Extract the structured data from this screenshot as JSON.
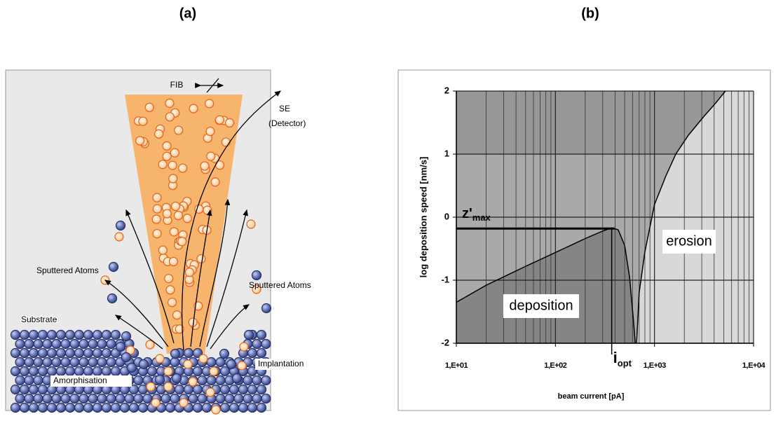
{
  "figure": {
    "label_a": "(a)",
    "label_b": "(b)"
  },
  "panel_a": {
    "fib": "FIB",
    "se": [
      "SE",
      "(Detector)"
    ],
    "sputtered_left": "Sputtered Atoms",
    "sputtered_right": "Sputtered Atoms",
    "substrate": "Substrate",
    "amorphisation": "Amorphisation",
    "implantation": "Implantation"
  },
  "chart_data": {
    "type": "line",
    "ylabel": "log deposition speed [nm/s]",
    "xlabel": "beam current [pA]",
    "log_x": true,
    "grid": true,
    "xlim": [
      10,
      10000
    ],
    "ylim": [
      -2,
      2
    ],
    "xticks": [
      {
        "value": 10,
        "label": "1,E+01"
      },
      {
        "value": 100,
        "label": "1,E+02"
      },
      {
        "value": 1000,
        "label": "1,E+03"
      },
      {
        "value": 10000,
        "label": "1,E+04"
      }
    ],
    "yticks": [
      -2,
      -1,
      0,
      1,
      2
    ],
    "x_minor_grid": [
      20,
      30,
      40,
      50,
      60,
      70,
      80,
      90,
      200,
      300,
      400,
      500,
      600,
      700,
      800,
      900,
      2000,
      3000,
      4000,
      5000,
      6000,
      7000,
      8000,
      9000
    ],
    "series": [
      {
        "name": "deposition",
        "color": "#000000",
        "x": [
          10,
          20,
          50,
          100,
          200,
          300,
          370,
          430,
          500,
          560,
          610,
          640
        ],
        "values": [
          -1.35,
          -1.08,
          -0.78,
          -0.56,
          -0.34,
          -0.22,
          -0.17,
          -0.2,
          -0.45,
          -0.95,
          -1.6,
          -2
        ]
      },
      {
        "name": "erosion",
        "color": "#000000",
        "x": [
          660,
          700,
          800,
          1000,
          1300,
          1640,
          2200,
          3160,
          4200,
          5200
        ],
        "values": [
          -2,
          -1.2,
          -0.55,
          0.2,
          0.65,
          1.0,
          1.3,
          1.6,
          1.82,
          2
        ]
      }
    ],
    "z_max": {
      "value": -0.18,
      "label_base": "z'",
      "label_sub": "max"
    },
    "i_opt": {
      "value": 370,
      "label_base": "i",
      "label_sub": "opt"
    }
  }
}
